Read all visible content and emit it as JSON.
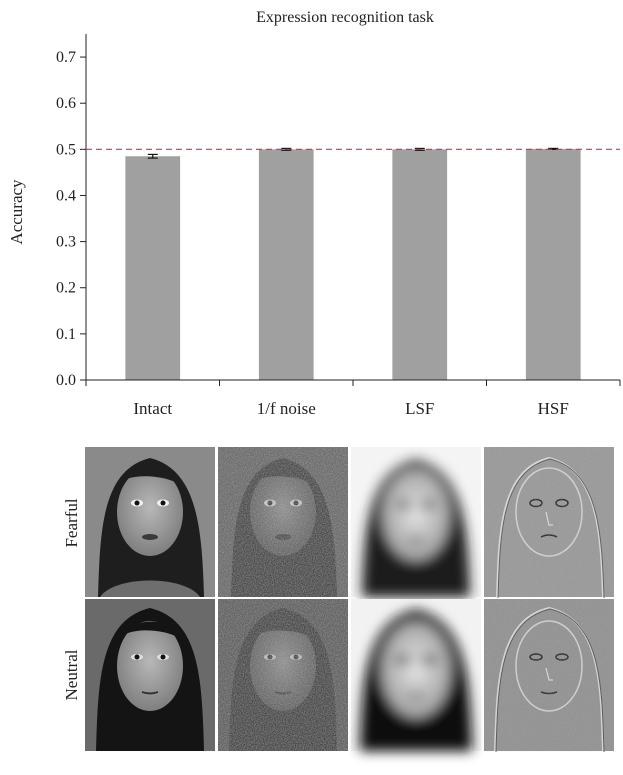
{
  "chart_data": {
    "type": "bar",
    "title": "Expression recognition task",
    "ylabel": "Accuracy",
    "xlabel": "",
    "ylim": [
      0,
      0.75
    ],
    "yticks": [
      0.0,
      0.1,
      0.2,
      0.3,
      0.4,
      0.5,
      0.6,
      0.7
    ],
    "ytick_labels": [
      "0.0",
      "0.1",
      "0.2",
      "0.3",
      "0.4",
      "0.5",
      "0.6",
      "0.7"
    ],
    "categories": [
      "Intact",
      "1/f noise",
      "LSF",
      "HSF"
    ],
    "values": [
      0.485,
      0.5,
      0.5,
      0.501
    ],
    "errors": [
      0.004,
      0.002,
      0.002,
      0.001
    ],
    "reference_line": 0.5,
    "grid": false,
    "bar_color": "#a0a0a0",
    "reference_color": "#e03030",
    "errorbar_color": "#111111"
  },
  "stimuli": {
    "row_labels": [
      "Fearful",
      "Neutral"
    ],
    "columns": [
      "Intact",
      "1/f noise",
      "LSF",
      "HSF"
    ]
  }
}
